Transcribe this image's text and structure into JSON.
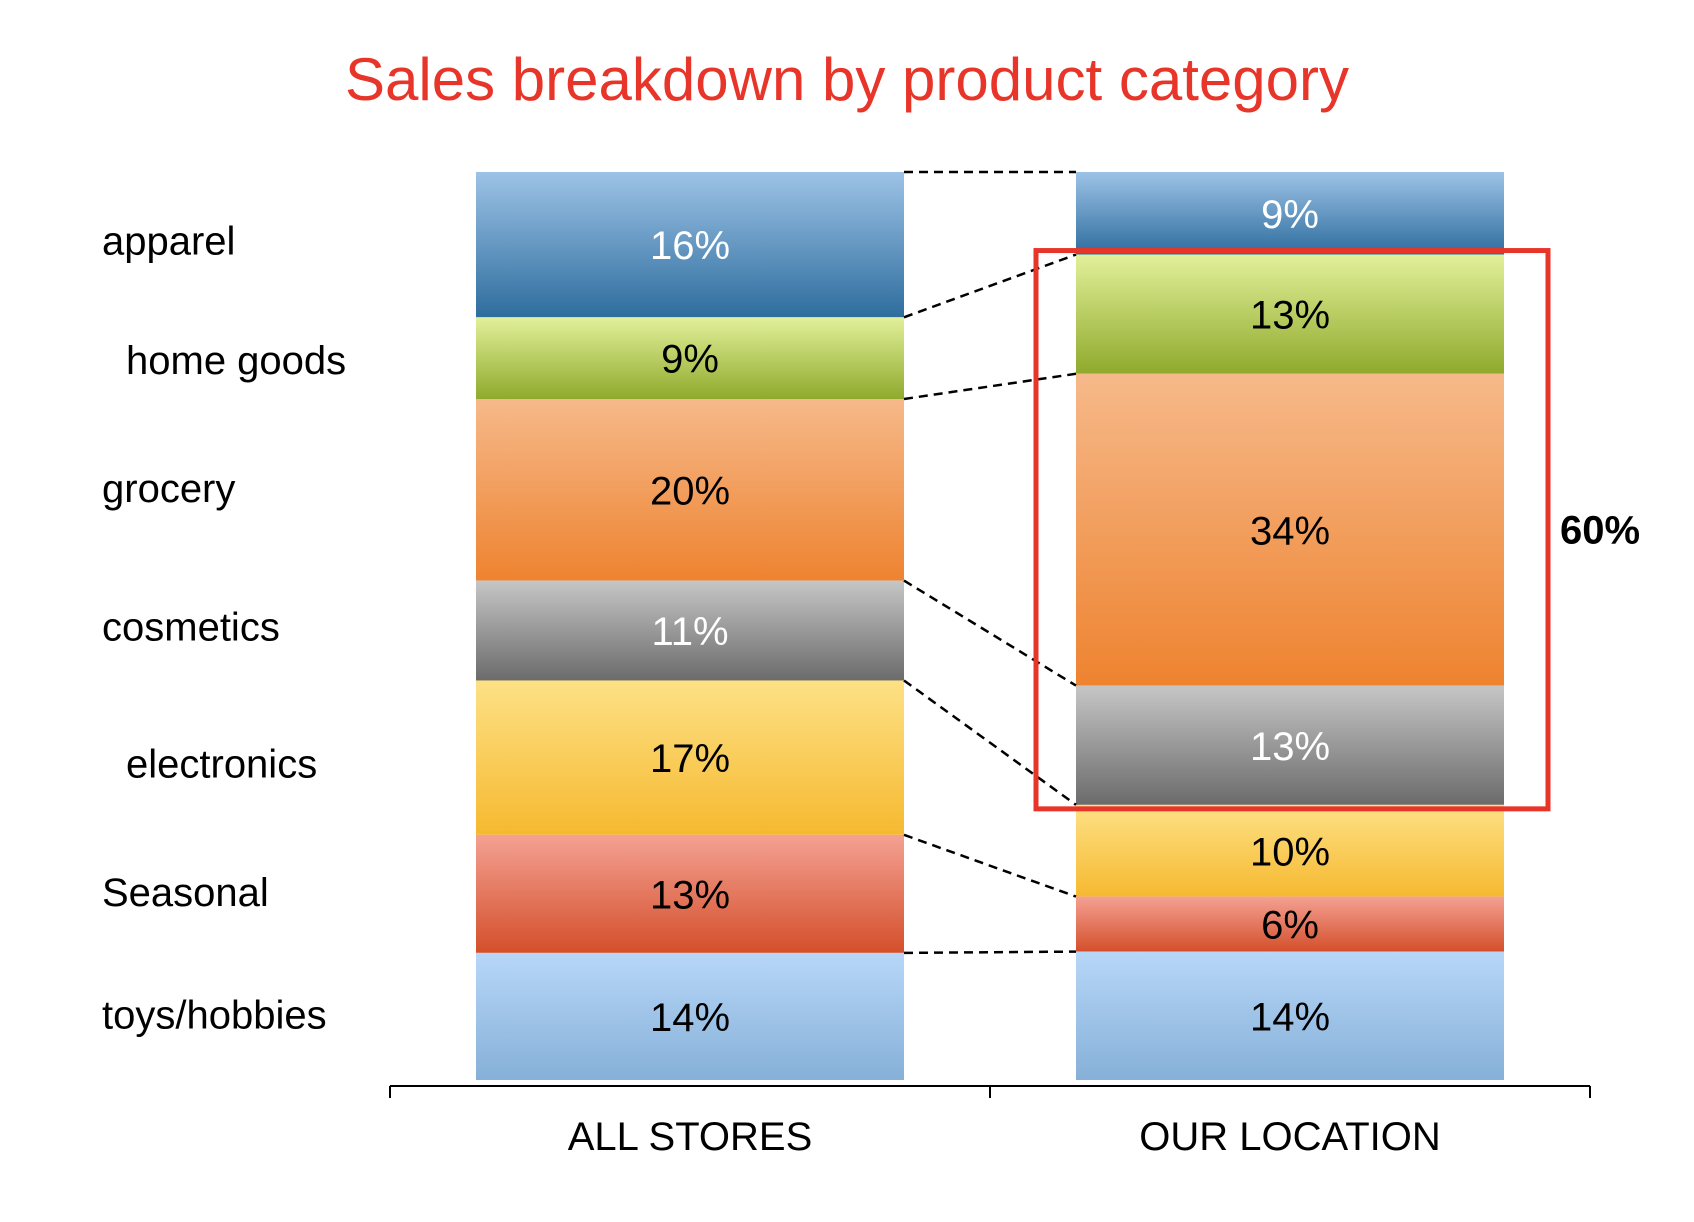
{
  "chart_data": {
    "type": "bar",
    "stacked": true,
    "normalized_100": true,
    "title": "Sales breakdown by product category",
    "categories": [
      "ALL STORES",
      "OUR LOCATION"
    ],
    "series": [
      {
        "name": "apparel",
        "values": [
          16,
          9
        ],
        "labels": [
          "16%",
          "9%"
        ],
        "color_top": "#9dc3e6",
        "color_bottom": "#2e6d9e",
        "label_color": "#ffffff"
      },
      {
        "name": "home goods",
        "values": [
          9,
          13
        ],
        "labels": [
          "9%",
          "13%"
        ],
        "color_top": "#e2f09a",
        "color_bottom": "#8faa2c",
        "label_color": "#000000"
      },
      {
        "name": "grocery",
        "values": [
          20,
          34
        ],
        "labels": [
          "20%",
          "34%"
        ],
        "color_top": "#f6b98a",
        "color_bottom": "#ee8330",
        "label_color": "#000000"
      },
      {
        "name": "cosmetics",
        "values": [
          11,
          13
        ],
        "labels": [
          "11%",
          "13%"
        ],
        "color_top": "#c6c6c6",
        "color_bottom": "#6b6b6b",
        "label_color": "#ffffff"
      },
      {
        "name": "electronics",
        "values": [
          17,
          10
        ],
        "labels": [
          "17%",
          "10%"
        ],
        "color_top": "#fde186",
        "color_bottom": "#f6b930",
        "label_color": "#000000"
      },
      {
        "name": "Seasonal",
        "values": [
          13,
          6
        ],
        "labels": [
          "13%",
          "6%"
        ],
        "color_top": "#f4a193",
        "color_bottom": "#d44f2b",
        "label_color": "#000000"
      },
      {
        "name": "toys/hobbies",
        "values": [
          14,
          14
        ],
        "labels": [
          "14%",
          "14%"
        ],
        "color_top": "#b7d7f8",
        "color_bottom": "#86b0d8",
        "label_color": "#000000"
      }
    ],
    "highlight": {
      "column": "OUR LOCATION",
      "series": [
        "home goods",
        "grocery",
        "cosmetics"
      ],
      "label": "60%",
      "color": "#e8352a"
    },
    "connectors": "dashed",
    "legend": "left",
    "title_color": "#e8352a"
  }
}
